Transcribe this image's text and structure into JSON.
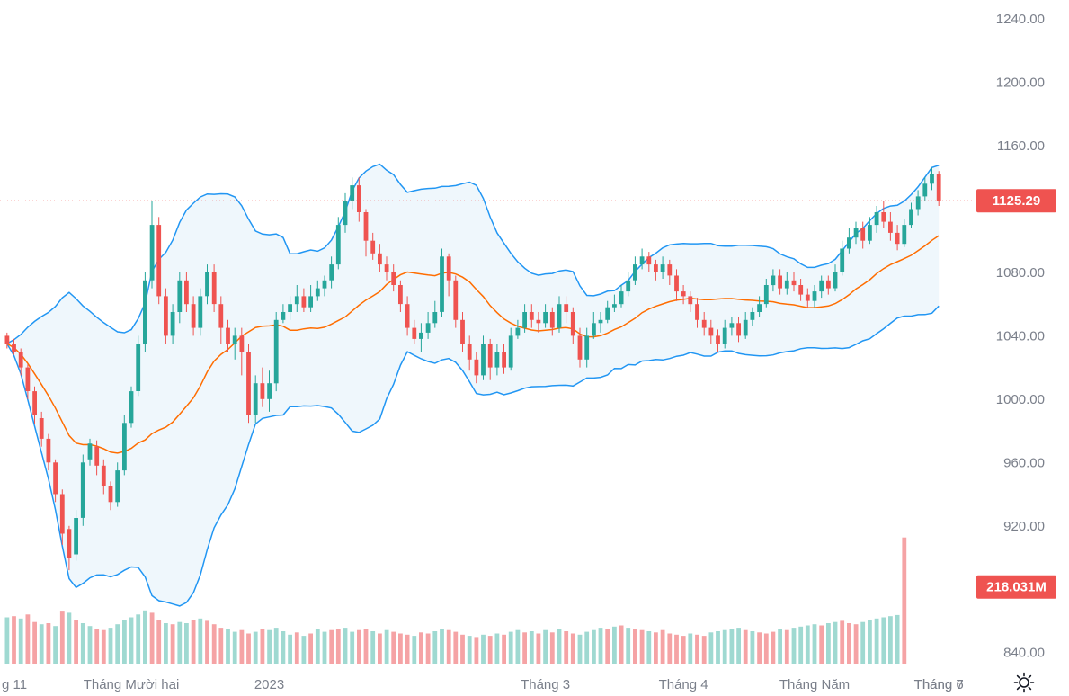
{
  "chart_data": {
    "type": "candlestick",
    "symbol_context": "Daily candlestick chart with Bollinger Bands (20) and volume",
    "y_axis": {
      "ticks": [
        "1240.00",
        "1200.00",
        "1160.00",
        "1080.00",
        "1040.00",
        "1000.00",
        "960.00",
        "920.00",
        "840.00"
      ],
      "tick_values": [
        1240,
        1200,
        1160,
        1080,
        1040,
        1000,
        960,
        920,
        840
      ],
      "range": [
        833,
        1252
      ]
    },
    "x_axis": {
      "labels": [
        "g 11",
        "Tháng Mười hai",
        "2023",
        "Tháng 3",
        "Tháng 4",
        "Tháng Năm",
        "Tháng 6",
        "Tháng 7"
      ],
      "label_bars": [
        0,
        18,
        38,
        78,
        98,
        117,
        136,
        155
      ]
    },
    "last_price": {
      "label": "1125.29",
      "value": 1125.29
    },
    "last_volume": {
      "label": "218.031M"
    },
    "visible_bars": 155,
    "candles": [
      [
        1040,
        1035,
        1042,
        1032
      ],
      [
        1035,
        1030,
        1038,
        1028
      ],
      [
        1030,
        1020,
        1032,
        1015
      ],
      [
        1020,
        1005,
        1022,
        1000
      ],
      [
        1005,
        990,
        1008,
        984
      ],
      [
        988,
        975,
        992,
        970
      ],
      [
        975,
        960,
        978,
        955
      ],
      [
        960,
        940,
        962,
        935
      ],
      [
        940,
        915,
        943,
        908
      ],
      [
        918,
        900,
        920,
        892
      ],
      [
        902,
        925,
        930,
        898
      ],
      [
        925,
        960,
        965,
        920
      ],
      [
        962,
        972,
        975,
        958
      ],
      [
        970,
        958,
        974,
        952
      ],
      [
        958,
        945,
        962,
        940
      ],
      [
        945,
        935,
        948,
        930
      ],
      [
        935,
        955,
        960,
        932
      ],
      [
        955,
        985,
        990,
        952
      ],
      [
        985,
        1005,
        1008,
        982
      ],
      [
        1005,
        1035,
        1040,
        1002
      ],
      [
        1035,
        1075,
        1080,
        1030
      ],
      [
        1075,
        1110,
        1125,
        1070
      ],
      [
        1110,
        1065,
        1115,
        1060
      ],
      [
        1065,
        1040,
        1070,
        1035
      ],
      [
        1040,
        1055,
        1060,
        1035
      ],
      [
        1055,
        1075,
        1080,
        1048
      ],
      [
        1075,
        1060,
        1080,
        1055
      ],
      [
        1060,
        1045,
        1065,
        1040
      ],
      [
        1045,
        1065,
        1070,
        1040
      ],
      [
        1065,
        1080,
        1085,
        1060
      ],
      [
        1080,
        1060,
        1085,
        1055
      ],
      [
        1060,
        1045,
        1065,
        1035
      ],
      [
        1045,
        1035,
        1050,
        1030
      ],
      [
        1035,
        1040,
        1045,
        1025
      ],
      [
        1040,
        1030,
        1045,
        1015
      ],
      [
        1030,
        990,
        1035,
        985
      ],
      [
        990,
        1010,
        1015,
        985
      ],
      [
        1010,
        1000,
        1020,
        995
      ],
      [
        1000,
        1010,
        1018,
        992
      ],
      [
        1010,
        1050,
        1055,
        1005
      ],
      [
        1050,
        1055,
        1060,
        1048
      ],
      [
        1055,
        1060,
        1065,
        1050
      ],
      [
        1060,
        1065,
        1072,
        1055
      ],
      [
        1065,
        1058,
        1070,
        1055
      ],
      [
        1058,
        1065,
        1072,
        1055
      ],
      [
        1065,
        1070,
        1075,
        1062
      ],
      [
        1070,
        1075,
        1078,
        1065
      ],
      [
        1075,
        1085,
        1090,
        1070
      ],
      [
        1085,
        1110,
        1115,
        1082
      ],
      [
        1110,
        1125,
        1130,
        1105
      ],
      [
        1125,
        1135,
        1140,
        1120
      ],
      [
        1135,
        1118,
        1140,
        1112
      ],
      [
        1118,
        1100,
        1120,
        1090
      ],
      [
        1100,
        1092,
        1105,
        1088
      ],
      [
        1092,
        1085,
        1098,
        1080
      ],
      [
        1085,
        1080,
        1090,
        1075
      ],
      [
        1080,
        1072,
        1085,
        1068
      ],
      [
        1072,
        1060,
        1075,
        1055
      ],
      [
        1060,
        1045,
        1065,
        1040
      ],
      [
        1045,
        1038,
        1050,
        1035
      ],
      [
        1038,
        1042,
        1048,
        1030
      ],
      [
        1042,
        1048,
        1055,
        1038
      ],
      [
        1048,
        1055,
        1062,
        1045
      ],
      [
        1055,
        1090,
        1095,
        1052
      ],
      [
        1090,
        1075,
        1092,
        1065
      ],
      [
        1075,
        1050,
        1078,
        1045
      ],
      [
        1050,
        1035,
        1055,
        1030
      ],
      [
        1035,
        1025,
        1040,
        1018
      ],
      [
        1025,
        1015,
        1030,
        1010
      ],
      [
        1015,
        1035,
        1040,
        1012
      ],
      [
        1035,
        1020,
        1038,
        1012
      ],
      [
        1020,
        1030,
        1035,
        1015
      ],
      [
        1030,
        1020,
        1035,
        1016
      ],
      [
        1020,
        1040,
        1045,
        1018
      ],
      [
        1040,
        1045,
        1050,
        1038
      ],
      [
        1045,
        1055,
        1060,
        1042
      ],
      [
        1055,
        1050,
        1060,
        1045
      ],
      [
        1050,
        1048,
        1055,
        1042
      ],
      [
        1048,
        1055,
        1060,
        1045
      ],
      [
        1055,
        1045,
        1058,
        1040
      ],
      [
        1045,
        1060,
        1065,
        1042
      ],
      [
        1060,
        1055,
        1065,
        1048
      ],
      [
        1055,
        1040,
        1058,
        1035
      ],
      [
        1040,
        1025,
        1045,
        1020
      ],
      [
        1025,
        1040,
        1045,
        1020
      ],
      [
        1040,
        1048,
        1055,
        1038
      ],
      [
        1048,
        1050,
        1055,
        1042
      ],
      [
        1050,
        1058,
        1062,
        1048
      ],
      [
        1058,
        1060,
        1066,
        1055
      ],
      [
        1060,
        1068,
        1072,
        1058
      ],
      [
        1068,
        1075,
        1080,
        1065
      ],
      [
        1075,
        1085,
        1090,
        1072
      ],
      [
        1085,
        1090,
        1095,
        1082
      ],
      [
        1090,
        1085,
        1093,
        1080
      ],
      [
        1085,
        1080,
        1088,
        1075
      ],
      [
        1080,
        1085,
        1090,
        1076
      ],
      [
        1085,
        1078,
        1088,
        1072
      ],
      [
        1078,
        1068,
        1082,
        1062
      ],
      [
        1068,
        1065,
        1072,
        1060
      ],
      [
        1065,
        1060,
        1068,
        1055
      ],
      [
        1060,
        1050,
        1064,
        1045
      ],
      [
        1050,
        1045,
        1055,
        1040
      ],
      [
        1045,
        1040,
        1050,
        1035
      ],
      [
        1040,
        1035,
        1044,
        1030
      ],
      [
        1035,
        1045,
        1050,
        1032
      ],
      [
        1045,
        1048,
        1052,
        1040
      ],
      [
        1048,
        1040,
        1052,
        1036
      ],
      [
        1040,
        1050,
        1055,
        1038
      ],
      [
        1050,
        1055,
        1058,
        1046
      ],
      [
        1055,
        1060,
        1065,
        1052
      ],
      [
        1060,
        1072,
        1076,
        1058
      ],
      [
        1072,
        1078,
        1082,
        1068
      ],
      [
        1078,
        1070,
        1082,
        1066
      ],
      [
        1070,
        1075,
        1080,
        1066
      ],
      [
        1075,
        1072,
        1080,
        1068
      ],
      [
        1072,
        1066,
        1076,
        1062
      ],
      [
        1066,
        1062,
        1070,
        1058
      ],
      [
        1062,
        1068,
        1072,
        1058
      ],
      [
        1068,
        1075,
        1078,
        1064
      ],
      [
        1075,
        1070,
        1078,
        1066
      ],
      [
        1070,
        1080,
        1085,
        1068
      ],
      [
        1080,
        1095,
        1100,
        1078
      ],
      [
        1095,
        1102,
        1108,
        1092
      ],
      [
        1102,
        1108,
        1112,
        1098
      ],
      [
        1108,
        1100,
        1112,
        1095
      ],
      [
        1100,
        1110,
        1115,
        1098
      ],
      [
        1110,
        1118,
        1122,
        1105
      ],
      [
        1118,
        1112,
        1125,
        1108
      ],
      [
        1112,
        1105,
        1118,
        1100
      ],
      [
        1105,
        1098,
        1110,
        1094
      ],
      [
        1098,
        1110,
        1114,
        1096
      ],
      [
        1110,
        1120,
        1124,
        1108
      ],
      [
        1120,
        1128,
        1132,
        1116
      ],
      [
        1128,
        1136,
        1140,
        1125
      ],
      [
        1136,
        1142,
        1146,
        1132
      ],
      [
        1142,
        1125.29,
        1144,
        1122
      ]
    ],
    "volumes": [
      [
        80,
        1
      ],
      [
        82,
        0
      ],
      [
        78,
        1
      ],
      [
        85,
        0
      ],
      [
        72,
        0
      ],
      [
        68,
        1
      ],
      [
        70,
        0
      ],
      [
        65,
        1
      ],
      [
        90,
        0
      ],
      [
        88,
        1
      ],
      [
        75,
        0
      ],
      [
        70,
        1
      ],
      [
        65,
        1
      ],
      [
        60,
        0
      ],
      [
        58,
        0
      ],
      [
        62,
        1
      ],
      [
        68,
        1
      ],
      [
        75,
        1
      ],
      [
        80,
        1
      ],
      [
        85,
        1
      ],
      [
        92,
        1
      ],
      [
        88,
        0
      ],
      [
        75,
        0
      ],
      [
        70,
        1
      ],
      [
        68,
        0
      ],
      [
        72,
        1
      ],
      [
        70,
        1
      ],
      [
        75,
        0
      ],
      [
        78,
        1
      ],
      [
        74,
        0
      ],
      [
        68,
        0
      ],
      [
        62,
        0
      ],
      [
        60,
        1
      ],
      [
        55,
        1
      ],
      [
        58,
        0
      ],
      [
        52,
        0
      ],
      [
        55,
        1
      ],
      [
        60,
        0
      ],
      [
        58,
        1
      ],
      [
        62,
        1
      ],
      [
        56,
        1
      ],
      [
        50,
        1
      ],
      [
        54,
        0
      ],
      [
        48,
        1
      ],
      [
        52,
        0
      ],
      [
        60,
        1
      ],
      [
        55,
        1
      ],
      [
        58,
        0
      ],
      [
        60,
        0
      ],
      [
        62,
        1
      ],
      [
        55,
        1
      ],
      [
        58,
        0
      ],
      [
        60,
        0
      ],
      [
        56,
        1
      ],
      [
        52,
        0
      ],
      [
        58,
        1
      ],
      [
        55,
        0
      ],
      [
        52,
        0
      ],
      [
        50,
        0
      ],
      [
        48,
        1
      ],
      [
        54,
        0
      ],
      [
        52,
        0
      ],
      [
        56,
        1
      ],
      [
        60,
        1
      ],
      [
        58,
        0
      ],
      [
        55,
        0
      ],
      [
        50,
        0
      ],
      [
        48,
        1
      ],
      [
        46,
        0
      ],
      [
        50,
        1
      ],
      [
        48,
        0
      ],
      [
        52,
        1
      ],
      [
        50,
        0
      ],
      [
        55,
        1
      ],
      [
        58,
        1
      ],
      [
        54,
        0
      ],
      [
        56,
        1
      ],
      [
        52,
        0
      ],
      [
        58,
        1
      ],
      [
        54,
        0
      ],
      [
        60,
        1
      ],
      [
        56,
        0
      ],
      [
        52,
        0
      ],
      [
        50,
        1
      ],
      [
        55,
        1
      ],
      [
        58,
        1
      ],
      [
        62,
        1
      ],
      [
        60,
        0
      ],
      [
        64,
        1
      ],
      [
        66,
        0
      ],
      [
        62,
        1
      ],
      [
        60,
        0
      ],
      [
        58,
        0
      ],
      [
        56,
        1
      ],
      [
        54,
        0
      ],
      [
        58,
        0
      ],
      [
        52,
        0
      ],
      [
        50,
        0
      ],
      [
        48,
        0
      ],
      [
        52,
        1
      ],
      [
        50,
        0
      ],
      [
        48,
        0
      ],
      [
        54,
        1
      ],
      [
        56,
        1
      ],
      [
        58,
        1
      ],
      [
        60,
        1
      ],
      [
        62,
        1
      ],
      [
        58,
        0
      ],
      [
        56,
        1
      ],
      [
        54,
        0
      ],
      [
        52,
        0
      ],
      [
        55,
        0
      ],
      [
        60,
        1
      ],
      [
        58,
        0
      ],
      [
        62,
        1
      ],
      [
        64,
        1
      ],
      [
        66,
        1
      ],
      [
        68,
        1
      ],
      [
        66,
        0
      ],
      [
        70,
        1
      ],
      [
        72,
        1
      ],
      [
        74,
        0
      ],
      [
        70,
        0
      ],
      [
        68,
        0
      ],
      [
        72,
        1
      ],
      [
        76,
        1
      ],
      [
        78,
        1
      ],
      [
        80,
        1
      ],
      [
        82,
        1
      ],
      [
        84,
        1
      ],
      [
        218,
        0
      ]
    ],
    "bollinger": {
      "period": 20,
      "upper_color": "#2196f3",
      "lower_color": "#2196f3",
      "basis_color": "#ff6d00",
      "fill_color": "#e8f3fb"
    },
    "colors": {
      "up": "#26a69a",
      "down": "#ef5350",
      "volume_up": "#9fd9d1",
      "volume_down": "#f5a3a5",
      "grid": "#ffffff",
      "axis_text": "#7a7f8a",
      "price_line": "#ef5350",
      "badge": "#ef5350"
    }
  },
  "settings": {
    "icon": "sun-gear-icon"
  }
}
